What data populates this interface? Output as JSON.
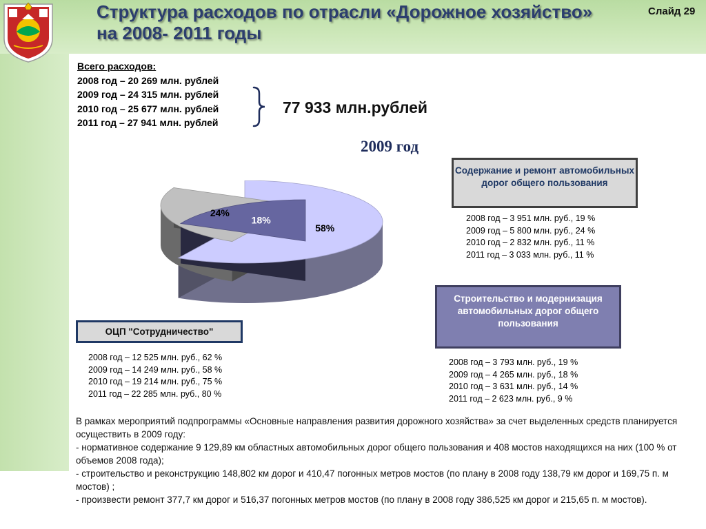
{
  "header": {
    "title_line1": "Структура расходов по отрасли «Дорожное хозяйство»",
    "title_line2": "на 2008- 2011 годы",
    "slide": "Слайд 29"
  },
  "totals": {
    "heading": "Всего расходов:",
    "lines": [
      "2008 год – 20 269 млн. рублей",
      "2009 год – 24 315 млн. рублей",
      "2010 год – 25 677 млн. рублей",
      "2011 год – 27 941 млн. рублей"
    ],
    "grand_total": "77 933 млн.рублей"
  },
  "chart_data": {
    "type": "pie",
    "title": "2009 год",
    "style": "3d-exploded",
    "slices": [
      {
        "label": "ОЦП \"Сотрудничество\"",
        "value": 58,
        "value_label": "58%",
        "color": "#ccccff"
      },
      {
        "label": "Содержание и ремонт автомобильных дорог общего пользования",
        "value": 24,
        "value_label": "24%",
        "color": "#c0c0c0"
      },
      {
        "label": "Строительство и модернизация автомобильных дорог общего пользования",
        "value": 18,
        "value_label": "18%",
        "color": "#6666a0"
      }
    ]
  },
  "categories": {
    "maintenance": {
      "title": "Содержание и ремонт автомобильных дорог общего пользования",
      "items": [
        "2008 год – 3 951 млн. руб., 19 %",
        "2009 год – 5 800 млн. руб., 24 %",
        "2010 год – 2 832 млн. руб., 11 %",
        "2011 год – 3 033 млн. руб., 11 %"
      ]
    },
    "construction": {
      "title": "Строительство и модернизация автомобильных дорог общего пользования",
      "items": [
        "2008 год – 3 793 млн. руб., 19 %",
        "2009 год – 4 265 млн. руб., 18 %",
        "2010 год – 3 631 млн. руб., 14 %",
        "2011 год – 2 623 млн. руб., 9 %"
      ]
    },
    "ocp": {
      "title": "ОЦП \"Сотрудничество\"",
      "items": [
        "2008 год – 12 525 млн. руб., 62 %",
        "2009 год – 14 249 млн. руб., 58 %",
        "2010 год – 19 214 млн. руб., 75 %",
        "2011 год – 22 285 млн. руб., 80 %"
      ]
    }
  },
  "notes": [
    "В рамках мероприятий подпрограммы «Основные направления развития дорожного хозяйства» за счет выделенных средств планируется осуществить в 2009 году:",
    " - нормативное содержание 9 129,89 км областных автомобильных дорог общего пользования и 408 мостов находящихся на них (100 % от объемов 2008 года);",
    " - строительство и реконструкцию 148,802 км дорог и  410,47 погонных метров мостов (по плану в 2008 году 138,79 км дорог и  169,75 п. м мостов) ;",
    " - произвести ремонт 377,7 км дорог и  516,37 погонных метров мостов (по плану в 2008 году 386,525 км дорог и  215,65 п. м мостов)."
  ],
  "emblem": {
    "icon": "coat-of-arms-icon",
    "colors": [
      "#c62828",
      "#ffffff",
      "#f3c300",
      "#00a651"
    ]
  }
}
